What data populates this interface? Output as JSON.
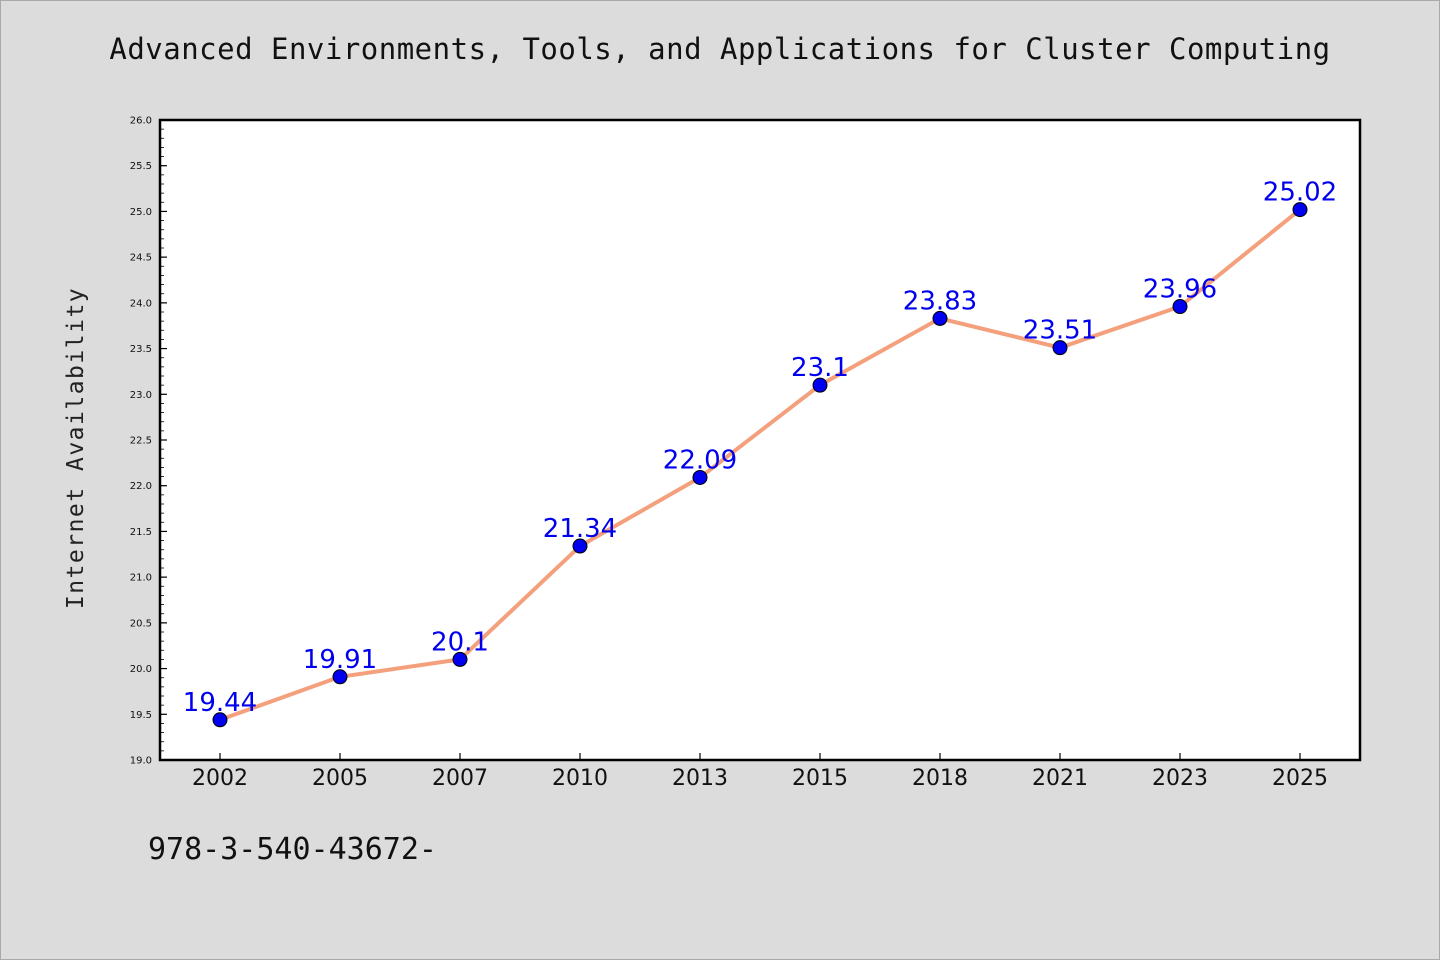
{
  "page": {
    "title": "Advanced Environments, Tools, and Applications for Cluster Computing",
    "footer_text": "978-3-540-43672-"
  },
  "colors": {
    "background": "#dcdcdc",
    "plot_background": "#ffffff",
    "line": "#f4a07c",
    "marker": "#0000ee",
    "data_label": "#0000ee"
  },
  "chart_data": {
    "type": "line",
    "title": "Advanced Environments, Tools, and Applications for Cluster Computing",
    "xlabel": "",
    "ylabel": "Internet Availability",
    "categories": [
      "2002",
      "2005",
      "2007",
      "2010",
      "2013",
      "2015",
      "2018",
      "2021",
      "2023",
      "2025"
    ],
    "series": [
      {
        "values": [
          19.44,
          19.91,
          20.1,
          21.34,
          22.09,
          23.1,
          23.83,
          23.51,
          23.96,
          25.02
        ],
        "labels": [
          "19.44",
          "19.91",
          "20.1",
          "21.34",
          "22.09",
          "23.1",
          "23.83",
          "23.51",
          "23.96",
          "25.02"
        ]
      }
    ],
    "ylim": [
      19.0,
      26.0
    ],
    "yticks": [
      "19.0",
      "19.5",
      "20.0",
      "20.5",
      "21.0",
      "21.5",
      "22.0",
      "22.5",
      "23.0",
      "23.5",
      "24.0",
      "24.5",
      "25.0",
      "25.5",
      "26.0"
    ],
    "grid": false,
    "legend": "none"
  }
}
